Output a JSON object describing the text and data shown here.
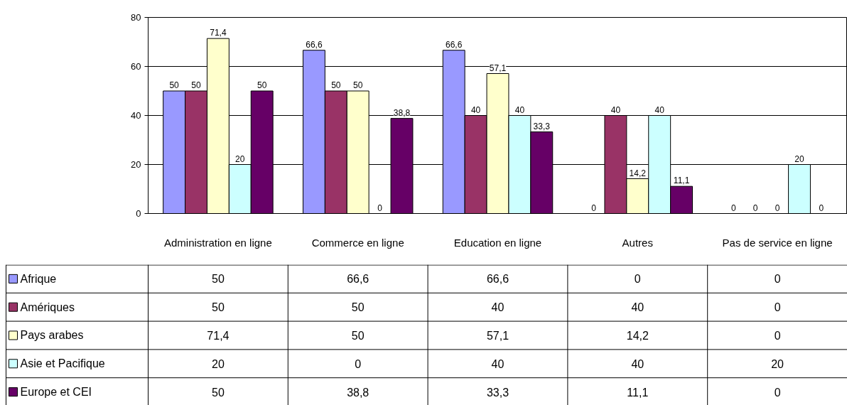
{
  "chart_data": {
    "type": "bar",
    "categories": [
      "Administration en ligne",
      "Commerce en ligne",
      "Education en ligne",
      "Autres",
      "Pas de service en ligne"
    ],
    "series": [
      {
        "name": "Afrique",
        "color": "#9999ff",
        "values": [
          50,
          66.6,
          66.6,
          0,
          0
        ],
        "value_labels": [
          "50",
          "66,6",
          "66,6",
          "0",
          "0"
        ]
      },
      {
        "name": "Amériques",
        "color": "#993366",
        "values": [
          50,
          50,
          40,
          40,
          0
        ],
        "value_labels": [
          "50",
          "50",
          "40",
          "40",
          "0"
        ]
      },
      {
        "name": "Pays arabes",
        "color": "#ffffcc",
        "values": [
          71.4,
          50,
          57.1,
          14.2,
          0
        ],
        "value_labels": [
          "71,4",
          "50",
          "57,1",
          "14,2",
          "0"
        ]
      },
      {
        "name": "Asie et Pacifique",
        "color": "#ccffff",
        "values": [
          20,
          0,
          40,
          40,
          20
        ],
        "value_labels": [
          "20",
          "0",
          "40",
          "40",
          "20"
        ]
      },
      {
        "name": "Europe et CEI",
        "color": "#660066",
        "values": [
          50,
          38.8,
          33.3,
          11.1,
          0
        ],
        "value_labels": [
          "50",
          "38,8",
          "33,3",
          "11,1",
          "0"
        ]
      }
    ],
    "ylim": [
      0,
      80
    ],
    "yticks": [
      0,
      20,
      40,
      60,
      80
    ],
    "grid": "y",
    "legend": "bottom"
  }
}
